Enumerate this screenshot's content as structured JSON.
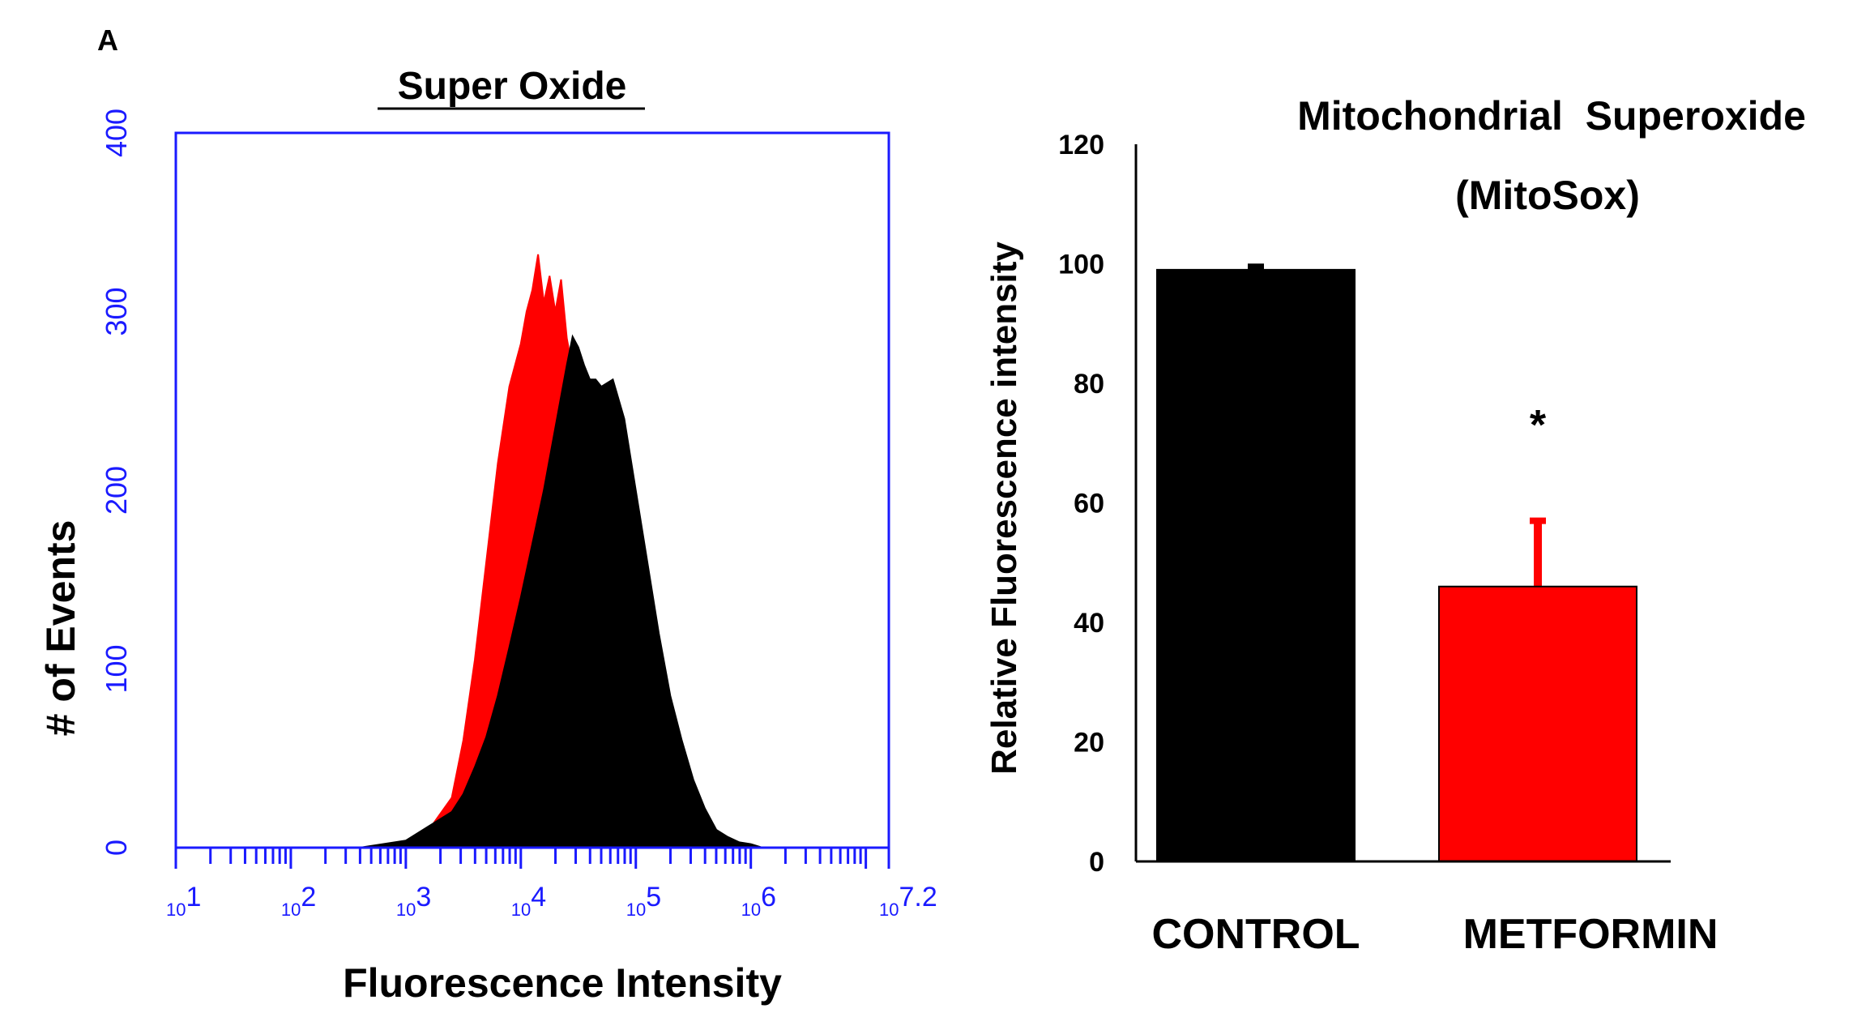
{
  "panel_label": "A",
  "chart_data": [
    {
      "type": "area",
      "title": "Super Oxide",
      "xlabel": "Fluorescence Intensity",
      "ylabel": "# of Events",
      "xscale": "log",
      "xlim_log10": [
        1,
        7.2
      ],
      "ylim": [
        0,
        400
      ],
      "yticks": [
        0,
        100,
        200,
        300,
        400
      ],
      "ytick_labels": [
        "0",
        "100",
        "200",
        "300",
        "400"
      ],
      "xtick_labels": [
        {
          "base": "10",
          "exp": "1",
          "log": 1
        },
        {
          "base": "10",
          "exp": "2",
          "log": 2
        },
        {
          "base": "10",
          "exp": "3",
          "log": 3
        },
        {
          "base": "10",
          "exp": "4",
          "log": 4
        },
        {
          "base": "10",
          "exp": "5",
          "log": 5
        },
        {
          "base": "10",
          "exp": "6",
          "log": 6
        },
        {
          "base": "10",
          "exp": "7.2",
          "log": 7.2
        }
      ],
      "axis_color": "#1a1aff",
      "series": [
        {
          "name": "metformin",
          "color": "#ff0000",
          "x_log10": [
            2.8,
            3.0,
            3.2,
            3.4,
            3.5,
            3.6,
            3.7,
            3.8,
            3.9,
            4.0,
            4.05,
            4.1,
            4.15,
            4.2,
            4.25,
            4.3,
            4.35,
            4.4,
            4.5,
            4.6,
            4.7,
            4.8,
            4.9,
            5.0,
            5.2,
            5.4,
            5.6
          ],
          "y": [
            0,
            3,
            10,
            28,
            60,
            105,
            160,
            215,
            258,
            282,
            300,
            312,
            332,
            305,
            320,
            300,
            318,
            285,
            250,
            180,
            110,
            60,
            25,
            10,
            5,
            3,
            0
          ]
        },
        {
          "name": "control",
          "color": "#000000",
          "x_log10": [
            2.6,
            3.0,
            3.2,
            3.4,
            3.5,
            3.6,
            3.7,
            3.8,
            3.9,
            4.0,
            4.1,
            4.2,
            4.3,
            4.4,
            4.45,
            4.5,
            4.55,
            4.6,
            4.65,
            4.7,
            4.8,
            4.9,
            5.0,
            5.1,
            5.2,
            5.3,
            5.4,
            5.5,
            5.6,
            5.7,
            5.8,
            5.9,
            6.0,
            6.1
          ],
          "y": [
            0,
            4,
            12,
            20,
            30,
            45,
            62,
            85,
            112,
            140,
            170,
            200,
            235,
            270,
            286,
            280,
            270,
            262,
            262,
            258,
            262,
            240,
            200,
            160,
            120,
            85,
            60,
            38,
            22,
            10,
            6,
            3,
            2,
            0
          ]
        }
      ]
    },
    {
      "type": "bar",
      "title": "Mitochondrial  Superoxide",
      "subtitle": "(MitoSox)",
      "ylabel": "Relative Fluorescence intensity",
      "categories": [
        "CONTROL",
        "METFORMIN"
      ],
      "values": [
        99,
        46
      ],
      "error_upper": [
        0.5,
        11
      ],
      "colors": [
        "#000000",
        "#ff0000"
      ],
      "ylim": [
        0,
        120
      ],
      "yticks": [
        0,
        20,
        40,
        60,
        80,
        100,
        120
      ],
      "ytick_labels": [
        "0",
        "20",
        "40",
        "60",
        "80",
        "100",
        "120"
      ],
      "annotations": [
        {
          "text": "*",
          "category": "METFORMIN",
          "y": 75
        }
      ]
    }
  ]
}
